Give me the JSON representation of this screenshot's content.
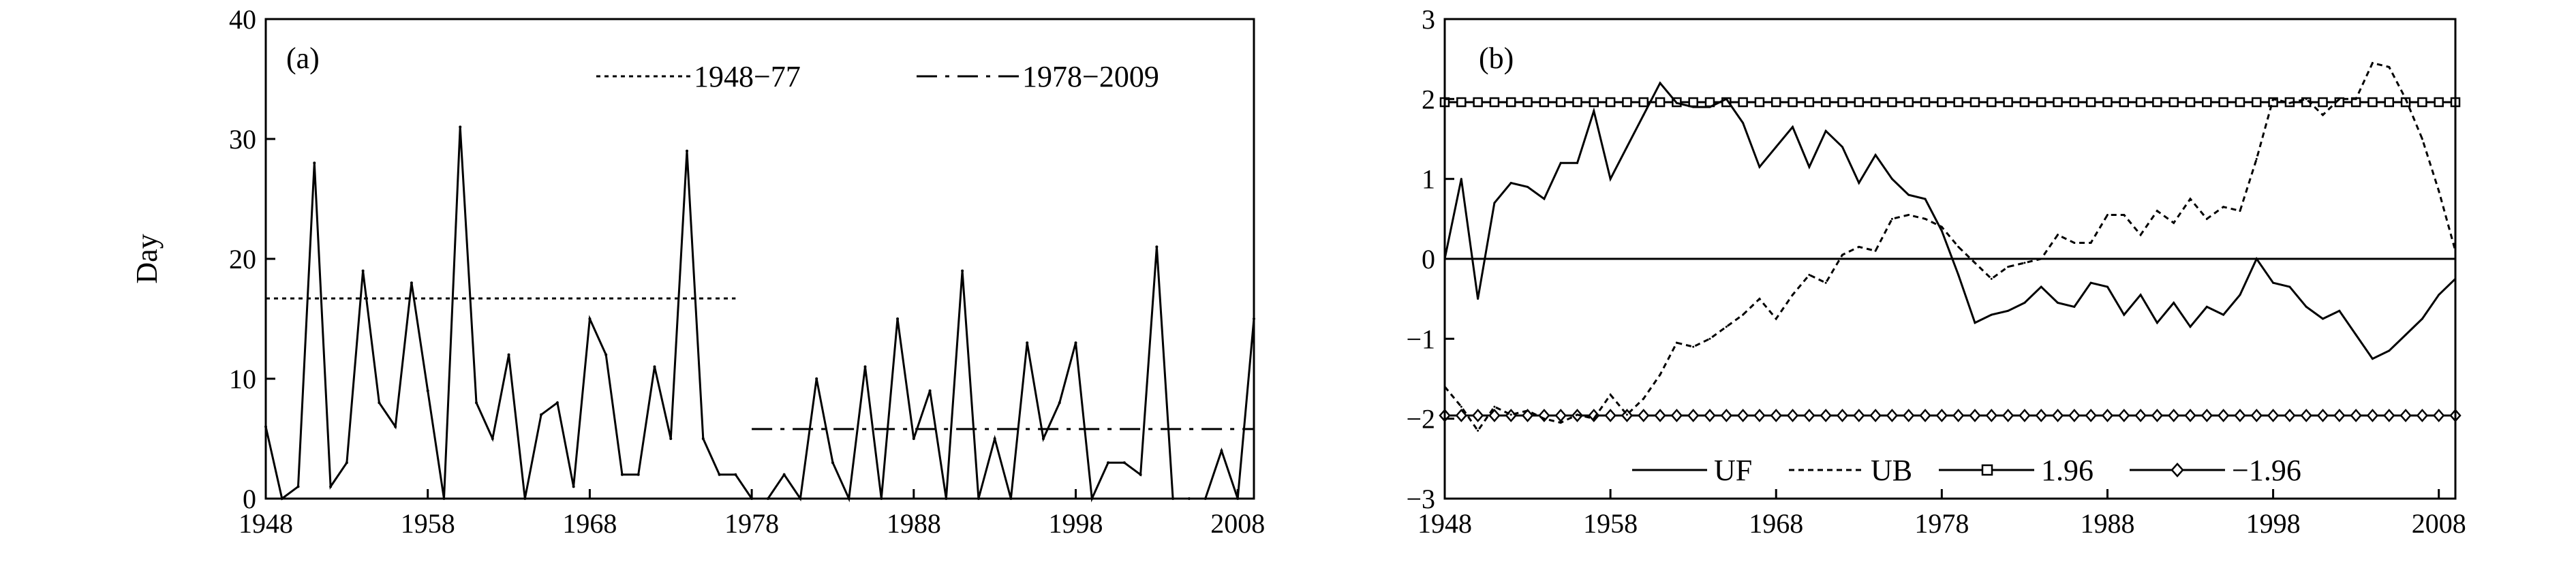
{
  "chart_data": [
    {
      "panel": "a",
      "type": "line",
      "panel_label": "(a)",
      "title": "",
      "xlabel": "",
      "ylabel": "Day",
      "xlim": [
        1948,
        2009
      ],
      "ylim": [
        0,
        40
      ],
      "xticks": [
        1948,
        1958,
        1968,
        1978,
        1988,
        1998,
        2008
      ],
      "yticks": [
        0,
        10,
        20,
        30,
        40
      ],
      "grid": false,
      "legend_position": "top-right",
      "series": [
        {
          "role": "data",
          "style": "solid",
          "x": [
            1948,
            1949,
            1950,
            1951,
            1952,
            1953,
            1954,
            1955,
            1956,
            1957,
            1958,
            1959,
            1960,
            1961,
            1962,
            1963,
            1964,
            1965,
            1966,
            1967,
            1968,
            1969,
            1970,
            1971,
            1972,
            1973,
            1974,
            1975,
            1976,
            1977,
            1978,
            1979,
            1980,
            1981,
            1982,
            1983,
            1984,
            1985,
            1986,
            1987,
            1988,
            1989,
            1990,
            1991,
            1992,
            1993,
            1994,
            1995,
            1996,
            1997,
            1998,
            1999,
            2000,
            2001,
            2002,
            2003,
            2004,
            2005,
            2006,
            2007,
            2008,
            2009
          ],
          "values": [
            6,
            0,
            1,
            28,
            1,
            3,
            19,
            8,
            6,
            18,
            9,
            0,
            31,
            8,
            5,
            12,
            0,
            7,
            8,
            1,
            15,
            12,
            2,
            2,
            11,
            5,
            29,
            5,
            2,
            2,
            0,
            0,
            2,
            0,
            10,
            3,
            0,
            11,
            0,
            15,
            5,
            9,
            0,
            19,
            0,
            5,
            0,
            13,
            5,
            8,
            13,
            0,
            3,
            3,
            2,
            21,
            0,
            0,
            0,
            4,
            0,
            15
          ]
        },
        {
          "name": "1948−77",
          "style": "dotted",
          "x": [
            1948,
            1977
          ],
          "values": [
            16.7,
            16.7
          ]
        },
        {
          "name": "1978−2009",
          "style": "dashdot",
          "x": [
            1978,
            2009
          ],
          "values": [
            5.8,
            5.8
          ]
        }
      ]
    },
    {
      "panel": "b",
      "type": "line",
      "panel_label": "(b)",
      "title": "",
      "xlabel": "",
      "ylabel": "",
      "xlim": [
        1948,
        2009
      ],
      "ylim": [
        -3,
        3
      ],
      "xticks": [
        1948,
        1958,
        1968,
        1978,
        1988,
        1998,
        2008
      ],
      "yticks": [
        3,
        2,
        1,
        0,
        -1,
        -2,
        -3
      ],
      "grid": false,
      "legend_position": "bottom",
      "series": [
        {
          "name": "UF",
          "style": "solid",
          "x": [
            1948,
            1949,
            1950,
            1951,
            1952,
            1953,
            1954,
            1955,
            1956,
            1957,
            1958,
            1959,
            1960,
            1961,
            1962,
            1963,
            1964,
            1965,
            1966,
            1967,
            1968,
            1969,
            1970,
            1971,
            1972,
            1973,
            1974,
            1975,
            1976,
            1977,
            1978,
            1979,
            1980,
            1981,
            1982,
            1983,
            1984,
            1985,
            1986,
            1987,
            1988,
            1989,
            1990,
            1991,
            1992,
            1993,
            1994,
            1995,
            1996,
            1997,
            1998,
            1999,
            2000,
            2001,
            2002,
            2003,
            2004,
            2005,
            2006,
            2007,
            2008,
            2009
          ],
          "values": [
            0,
            1.0,
            -0.5,
            0.7,
            0.95,
            0.9,
            0.75,
            1.2,
            1.2,
            1.85,
            1.0,
            1.4,
            1.8,
            2.2,
            1.95,
            1.9,
            1.9,
            2.0,
            1.7,
            1.15,
            1.4,
            1.65,
            1.15,
            1.6,
            1.4,
            0.95,
            1.3,
            1.0,
            0.8,
            0.75,
            0.35,
            -0.2,
            -0.8,
            -0.7,
            -0.65,
            -0.55,
            -0.35,
            -0.55,
            -0.6,
            -0.3,
            -0.35,
            -0.7,
            -0.45,
            -0.8,
            -0.55,
            -0.85,
            -0.6,
            -0.7,
            -0.45,
            0.0,
            -0.3,
            -0.35,
            -0.6,
            -0.75,
            -0.65,
            -0.95,
            -1.25,
            -1.15,
            -0.95,
            -0.75,
            -0.45,
            -0.25
          ]
        },
        {
          "name": "UB",
          "style": "dashed",
          "x": [
            1948,
            1949,
            1950,
            1951,
            1952,
            1953,
            1954,
            1955,
            1956,
            1957,
            1958,
            1959,
            1960,
            1961,
            1962,
            1963,
            1964,
            1965,
            1966,
            1967,
            1968,
            1969,
            1970,
            1971,
            1972,
            1973,
            1974,
            1975,
            1976,
            1977,
            1978,
            1979,
            1980,
            1981,
            1982,
            1983,
            1984,
            1985,
            1986,
            1987,
            1988,
            1989,
            1990,
            1991,
            1992,
            1993,
            1994,
            1995,
            1996,
            1997,
            1998,
            1999,
            2000,
            2001,
            2002,
            2003,
            2004,
            2005,
            2006,
            2007,
            2008,
            2009
          ],
          "values": [
            -1.6,
            -1.85,
            -2.15,
            -1.85,
            -1.95,
            -1.9,
            -2.0,
            -2.05,
            -1.95,
            -2.0,
            -1.7,
            -1.95,
            -1.75,
            -1.45,
            -1.05,
            -1.1,
            -1.0,
            -0.85,
            -0.7,
            -0.5,
            -0.75,
            -0.45,
            -0.2,
            -0.3,
            0.05,
            0.15,
            0.1,
            0.5,
            0.55,
            0.5,
            0.4,
            0.15,
            -0.05,
            -0.25,
            -0.1,
            -0.05,
            0.0,
            0.3,
            0.2,
            0.2,
            0.55,
            0.55,
            0.3,
            0.6,
            0.45,
            0.75,
            0.5,
            0.65,
            0.6,
            1.25,
            2.0,
            1.95,
            2.0,
            1.8,
            2.0,
            2.0,
            2.45,
            2.4,
            2.0,
            1.5,
            0.85,
            0.1
          ]
        },
        {
          "name": "1.96",
          "style": "solid-square-markers",
          "x": [
            1948,
            2009
          ],
          "values": [
            1.96,
            1.96
          ]
        },
        {
          "name": "−1.96",
          "style": "solid-diamond-markers",
          "x": [
            1948,
            2009
          ],
          "values": [
            -1.96,
            -1.96
          ]
        }
      ]
    }
  ]
}
